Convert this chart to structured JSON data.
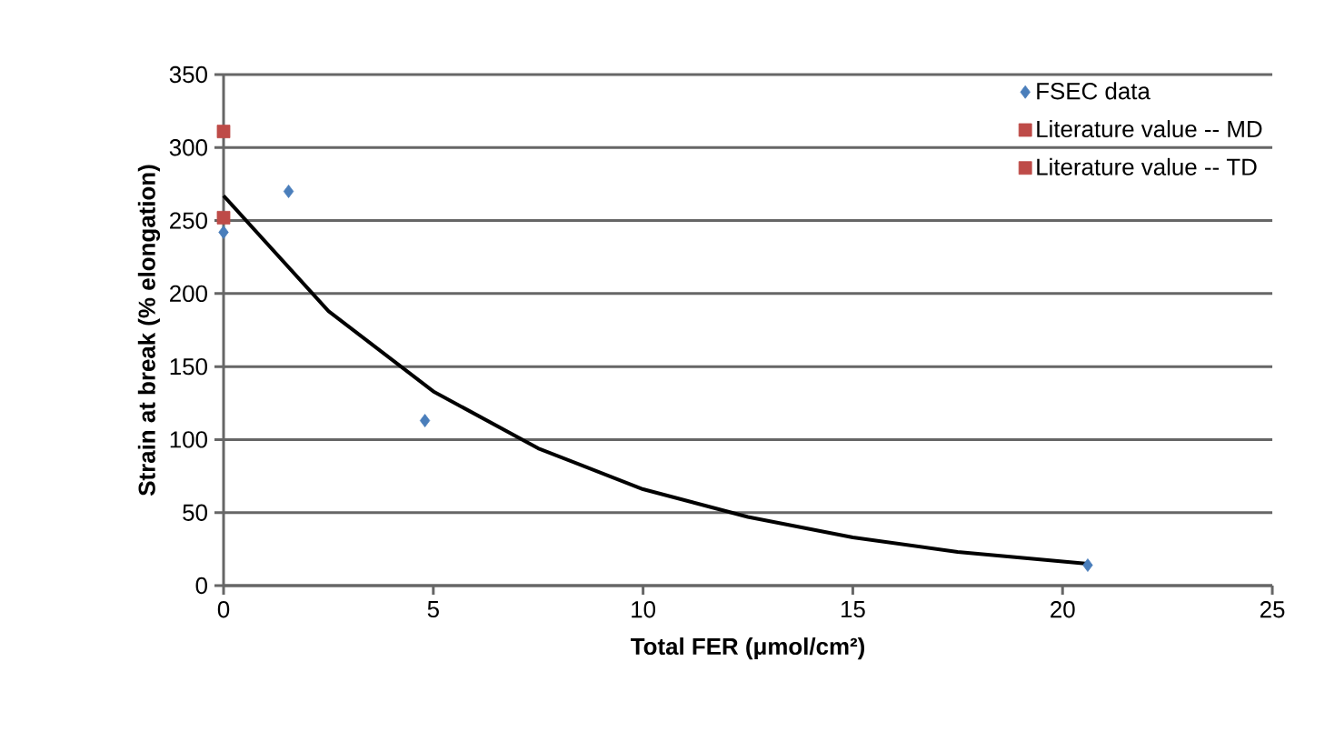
{
  "chart_data": {
    "type": "scatter",
    "xlabel": "Total FER (μmol/cm²)",
    "ylabel": "Strain at break (% elongation)",
    "xlim": [
      0,
      25
    ],
    "xticks": [
      0,
      5,
      10,
      15,
      20,
      25
    ],
    "ylim": [
      0,
      350
    ],
    "yticks": [
      0,
      50,
      100,
      150,
      200,
      250,
      300,
      350
    ],
    "grid": "y",
    "legend": "top right",
    "series": [
      {
        "name": "FSEC data",
        "color": "#4a7ebb",
        "marker": "diamond",
        "x": [
          0,
          1.55,
          4.8,
          20.6
        ],
        "values": [
          242,
          270,
          113,
          14
        ]
      },
      {
        "name": "Literature value -- MD",
        "color": "#be4b48",
        "marker": "square",
        "x": [
          0
        ],
        "values": [
          252
        ]
      },
      {
        "name": "Literature value -- TD",
        "color": "#be4b48",
        "marker": "square",
        "x": [
          0
        ],
        "values": [
          311
        ]
      },
      {
        "type": "line",
        "color": "#000000",
        "marker": "none",
        "x": [
          0,
          2.5,
          5,
          7.5,
          10,
          12.5,
          15,
          17.5,
          20.6
        ],
        "values": [
          267,
          188,
          133,
          94,
          66,
          47,
          33,
          23,
          15
        ]
      }
    ]
  }
}
